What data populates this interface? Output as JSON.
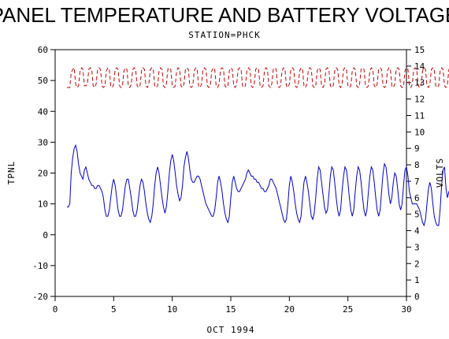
{
  "chart_data": {
    "type": "line",
    "title": "PANEL TEMPERATURE AND BATTERY VOLTAGE",
    "subtitle": "STATION=PHCK",
    "xlabel": "OCT 1994",
    "ylabel_left": "TPNL",
    "ylabel_right": "VOLTS",
    "xlim": [
      0,
      30
    ],
    "ylim_left": [
      -20,
      60
    ],
    "ylim_right": [
      0,
      15
    ],
    "x_ticks": [
      0,
      5,
      10,
      15,
      20,
      25,
      30
    ],
    "y_left_ticks": [
      -20,
      -10,
      0,
      10,
      20,
      30,
      40,
      50,
      60
    ],
    "y_right_ticks": [
      0,
      1,
      2,
      3,
      4,
      5,
      6,
      7,
      8,
      9,
      10,
      11,
      12,
      13,
      14,
      15
    ],
    "grid": false,
    "legend": "none",
    "series": [
      {
        "axis": "left",
        "color": "#0000cc",
        "style": "solid",
        "x_start": 1.0,
        "x_step": 0.125,
        "values": [
          9,
          9,
          10,
          20,
          25,
          28,
          29,
          27,
          23,
          20,
          19,
          18,
          21,
          22,
          20,
          18,
          17,
          16,
          16,
          15,
          15,
          16,
          16,
          15,
          14,
          12,
          8,
          6,
          6,
          8,
          12,
          16,
          18,
          16,
          12,
          8,
          6,
          6,
          8,
          12,
          16,
          18,
          18,
          15,
          12,
          8,
          6,
          6,
          8,
          12,
          16,
          18,
          17,
          14,
          10,
          7,
          5,
          4,
          6,
          10,
          16,
          20,
          22,
          20,
          16,
          12,
          9,
          7,
          9,
          14,
          20,
          24,
          26,
          24,
          20,
          16,
          13,
          11,
          12,
          16,
          22,
          25,
          27,
          25,
          21,
          18,
          17,
          17,
          18,
          19,
          19,
          18,
          16,
          14,
          12,
          10,
          9,
          8,
          7,
          6,
          6,
          8,
          12,
          17,
          19,
          17,
          14,
          10,
          7,
          5,
          4,
          6,
          12,
          17,
          19,
          17,
          15,
          14,
          14,
          15,
          16,
          17,
          18,
          20,
          21,
          20,
          19,
          19,
          18,
          18,
          17,
          17,
          16,
          15,
          15,
          14,
          14,
          15,
          16,
          18,
          18,
          17,
          16,
          15,
          13,
          11,
          9,
          7,
          5,
          4,
          5,
          10,
          16,
          19,
          17,
          14,
          10,
          7,
          5,
          4,
          6,
          12,
          17,
          19,
          17,
          14,
          10,
          6,
          5,
          7,
          12,
          18,
          22,
          21,
          17,
          13,
          9,
          7,
          8,
          13,
          19,
          22,
          21,
          17,
          12,
          8,
          6,
          8,
          14,
          19,
          22,
          21,
          17,
          12,
          8,
          6,
          8,
          14,
          19,
          22,
          21,
          17,
          12,
          8,
          6,
          8,
          14,
          19,
          22,
          21,
          17,
          12,
          8,
          6,
          8,
          14,
          20,
          23,
          22,
          18,
          13,
          10,
          12,
          17,
          20,
          19,
          15,
          10,
          8,
          10,
          16,
          21,
          22,
          19,
          14,
          12,
          10,
          10,
          10,
          10,
          9,
          8,
          6,
          4,
          3,
          5,
          10,
          15,
          17,
          15,
          10,
          6,
          4,
          3,
          3,
          8,
          16,
          21,
          22,
          15,
          12,
          14,
          15
        ]
      },
      {
        "axis": "right",
        "color": "#cc0000",
        "style": "dashed",
        "x_start": 1.0,
        "x_step": 0.125,
        "values": [
          12.7,
          12.7,
          12.7,
          13.6,
          13.8,
          13.9,
          12.9,
          12.7,
          12.8,
          13.7,
          13.9,
          13.8,
          12.8,
          12.8,
          12.9,
          13.8,
          13.9,
          13.8,
          12.8,
          12.7,
          12.9,
          13.8,
          13.9,
          13.8,
          12.8,
          12.7,
          12.8,
          13.7,
          13.9,
          13.8,
          12.8,
          12.7,
          12.9,
          13.8,
          13.9,
          13.8,
          12.8,
          12.7,
          12.8,
          13.7,
          13.9,
          13.8,
          12.8,
          12.7,
          12.9,
          13.8,
          13.9,
          13.8,
          12.8,
          12.7,
          12.8,
          13.7,
          13.9,
          13.8,
          12.8,
          12.7,
          12.9,
          13.8,
          13.9,
          13.8,
          12.8,
          12.7,
          12.8,
          13.7,
          13.9,
          13.8,
          12.8,
          12.7,
          12.9,
          13.8,
          13.9,
          13.8,
          12.8,
          12.7,
          12.8,
          13.7,
          13.9,
          13.8,
          12.8,
          12.7,
          12.9,
          13.8,
          13.9,
          13.8,
          12.8,
          12.7,
          12.8,
          13.7,
          13.9,
          13.8,
          12.8,
          12.7,
          12.9,
          13.8,
          13.9,
          13.8,
          12.8,
          12.7,
          12.8,
          13.7,
          13.9,
          13.8,
          12.8,
          12.7,
          12.9,
          13.8,
          13.9,
          13.8,
          12.8,
          12.7,
          12.8,
          13.7,
          13.9,
          13.8,
          12.8,
          12.7,
          12.9,
          13.8,
          13.9,
          13.8,
          12.8,
          12.7,
          12.8,
          13.7,
          13.9,
          13.8,
          12.8,
          12.7,
          12.9,
          13.8,
          13.9,
          13.8,
          12.8,
          12.7,
          12.8,
          13.7,
          13.9,
          13.8,
          12.8,
          12.7,
          12.9,
          13.8,
          13.9,
          13.8,
          12.8,
          12.7,
          12.8,
          13.7,
          13.9,
          13.8,
          12.8,
          12.7,
          12.9,
          13.8,
          13.9,
          13.8,
          12.8,
          12.7,
          12.8,
          13.7,
          13.9,
          13.8,
          12.8,
          12.7,
          12.9,
          13.8,
          13.9,
          13.8,
          12.8,
          12.7,
          12.8,
          13.7,
          13.9,
          13.8,
          12.8,
          12.7,
          12.9,
          13.8,
          13.9,
          13.8,
          12.8,
          12.7,
          12.8,
          13.7,
          13.9,
          13.8,
          12.8,
          12.7,
          12.9,
          13.8,
          13.9,
          13.8,
          12.8,
          12.7,
          12.8,
          13.7,
          13.9,
          13.8,
          12.8,
          12.7,
          12.9,
          13.8,
          13.9,
          13.8,
          12.8,
          12.7,
          12.8,
          13.7,
          13.9,
          13.8,
          12.8,
          12.7,
          12.9,
          13.8,
          13.9,
          13.8,
          12.8,
          12.7,
          12.8,
          13.7,
          13.9,
          13.8,
          12.8,
          12.7,
          12.9,
          13.8,
          13.9,
          13.8,
          12.8,
          12.7,
          12.8,
          13.7,
          13.9,
          13.8,
          12.8,
          12.7,
          12.9,
          13.8,
          13.9,
          13.8,
          12.8,
          12.7,
          12.8,
          13.7,
          13.9,
          13.8,
          12.8,
          12.7,
          12.9,
          13.8,
          13.9,
          13.8,
          12.8,
          12.7,
          12.8,
          13.7,
          13.9,
          13.8,
          12.8,
          12.7,
          12.9,
          13.8,
          13.9,
          13.8,
          12.8,
          12.7,
          12.8,
          13.7,
          13.9,
          13.8,
          12.8,
          12.7,
          12.9,
          13.8,
          13.9,
          13.8,
          12.8,
          12.7,
          12.8,
          13.7,
          13.9
        ]
      }
    ]
  }
}
